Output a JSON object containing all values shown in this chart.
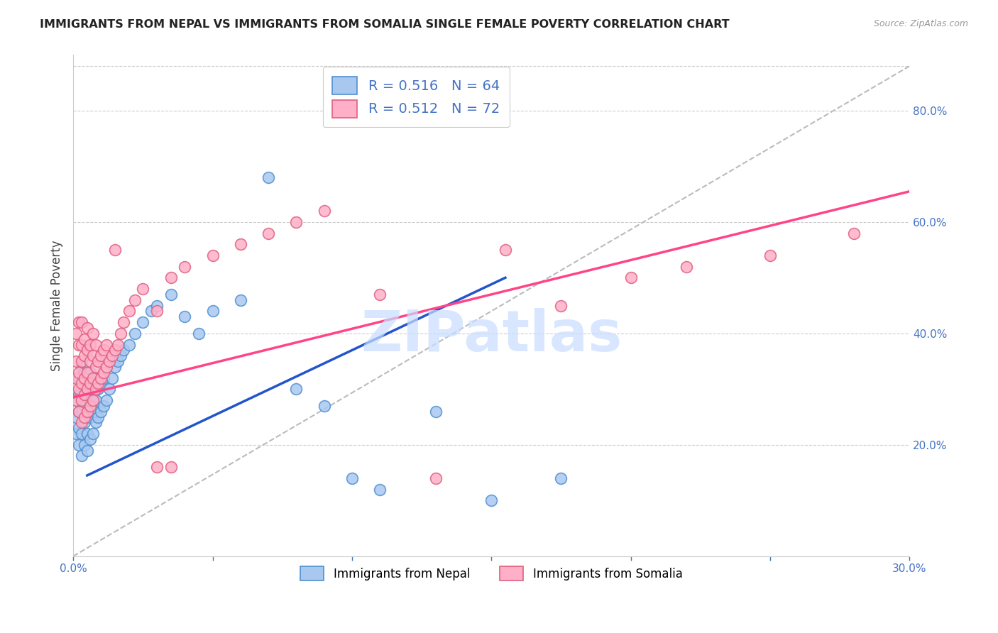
{
  "title": "IMMIGRANTS FROM NEPAL VS IMMIGRANTS FROM SOMALIA SINGLE FEMALE POVERTY CORRELATION CHART",
  "source": "Source: ZipAtlas.com",
  "ylabel": "Single Female Poverty",
  "xlim": [
    0.0,
    0.3
  ],
  "ylim": [
    0.0,
    0.9
  ],
  "xticks": [
    0.0,
    0.05,
    0.1,
    0.15,
    0.2,
    0.25,
    0.3
  ],
  "xticklabels": [
    "0.0%",
    "",
    "",
    "",
    "",
    "",
    "30.0%"
  ],
  "right_yticks": [
    0.2,
    0.4,
    0.6,
    0.8
  ],
  "right_yticklabels": [
    "20.0%",
    "40.0%",
    "60.0%",
    "80.0%"
  ],
  "nepal_color": "#A8C8F0",
  "nepal_edge": "#5090D0",
  "somalia_color": "#FFB0C8",
  "somalia_edge": "#E06080",
  "nepal_line_color": "#2255CC",
  "somalia_line_color": "#FF4488",
  "diagonal_color": "#BBBBBB",
  "watermark_text": "ZIPatlas",
  "watermark_color": "#C8DEFF",
  "legend_label1": "Immigrants from Nepal",
  "legend_label2": "Immigrants from Somalia",
  "nepal_line_x": [
    0.005,
    0.155
  ],
  "nepal_line_y": [
    0.145,
    0.5
  ],
  "somalia_line_x": [
    0.0,
    0.3
  ],
  "somalia_line_y": [
    0.285,
    0.655
  ],
  "diag_line_x": [
    0.0,
    0.3
  ],
  "diag_line_y": [
    0.0,
    0.88
  ],
  "nepal_x": [
    0.001,
    0.001,
    0.001,
    0.002,
    0.002,
    0.002,
    0.002,
    0.002,
    0.003,
    0.003,
    0.003,
    0.003,
    0.003,
    0.003,
    0.004,
    0.004,
    0.004,
    0.004,
    0.004,
    0.005,
    0.005,
    0.005,
    0.005,
    0.006,
    0.006,
    0.006,
    0.006,
    0.007,
    0.007,
    0.007,
    0.008,
    0.008,
    0.008,
    0.009,
    0.009,
    0.01,
    0.01,
    0.011,
    0.011,
    0.012,
    0.013,
    0.014,
    0.015,
    0.016,
    0.017,
    0.018,
    0.02,
    0.022,
    0.025,
    0.028,
    0.03,
    0.035,
    0.04,
    0.045,
    0.05,
    0.06,
    0.07,
    0.08,
    0.09,
    0.1,
    0.11,
    0.13,
    0.15,
    0.175
  ],
  "nepal_y": [
    0.22,
    0.25,
    0.28,
    0.2,
    0.23,
    0.26,
    0.29,
    0.32,
    0.18,
    0.22,
    0.26,
    0.28,
    0.3,
    0.34,
    0.2,
    0.24,
    0.27,
    0.3,
    0.33,
    0.19,
    0.22,
    0.26,
    0.3,
    0.21,
    0.25,
    0.28,
    0.33,
    0.22,
    0.26,
    0.3,
    0.24,
    0.28,
    0.32,
    0.25,
    0.3,
    0.26,
    0.31,
    0.27,
    0.32,
    0.28,
    0.3,
    0.32,
    0.34,
    0.35,
    0.36,
    0.37,
    0.38,
    0.4,
    0.42,
    0.44,
    0.45,
    0.47,
    0.43,
    0.4,
    0.44,
    0.46,
    0.68,
    0.3,
    0.27,
    0.14,
    0.12,
    0.26,
    0.1,
    0.14
  ],
  "somalia_x": [
    0.001,
    0.001,
    0.001,
    0.001,
    0.002,
    0.002,
    0.002,
    0.002,
    0.002,
    0.003,
    0.003,
    0.003,
    0.003,
    0.003,
    0.003,
    0.004,
    0.004,
    0.004,
    0.004,
    0.004,
    0.005,
    0.005,
    0.005,
    0.005,
    0.005,
    0.006,
    0.006,
    0.006,
    0.006,
    0.007,
    0.007,
    0.007,
    0.007,
    0.008,
    0.008,
    0.008,
    0.009,
    0.009,
    0.01,
    0.01,
    0.011,
    0.011,
    0.012,
    0.012,
    0.013,
    0.014,
    0.015,
    0.016,
    0.017,
    0.018,
    0.02,
    0.022,
    0.025,
    0.03,
    0.035,
    0.04,
    0.05,
    0.06,
    0.07,
    0.08,
    0.09,
    0.11,
    0.13,
    0.155,
    0.175,
    0.2,
    0.22,
    0.25,
    0.28,
    0.03,
    0.035,
    0.015
  ],
  "somalia_y": [
    0.28,
    0.32,
    0.35,
    0.4,
    0.26,
    0.3,
    0.33,
    0.38,
    0.42,
    0.24,
    0.28,
    0.31,
    0.35,
    0.38,
    0.42,
    0.25,
    0.29,
    0.32,
    0.36,
    0.39,
    0.26,
    0.3,
    0.33,
    0.37,
    0.41,
    0.27,
    0.31,
    0.35,
    0.38,
    0.28,
    0.32,
    0.36,
    0.4,
    0.3,
    0.34,
    0.38,
    0.31,
    0.35,
    0.32,
    0.36,
    0.33,
    0.37,
    0.34,
    0.38,
    0.35,
    0.36,
    0.37,
    0.38,
    0.4,
    0.42,
    0.44,
    0.46,
    0.48,
    0.44,
    0.5,
    0.52,
    0.54,
    0.56,
    0.58,
    0.6,
    0.62,
    0.47,
    0.14,
    0.55,
    0.45,
    0.5,
    0.52,
    0.54,
    0.58,
    0.16,
    0.16,
    0.55
  ]
}
